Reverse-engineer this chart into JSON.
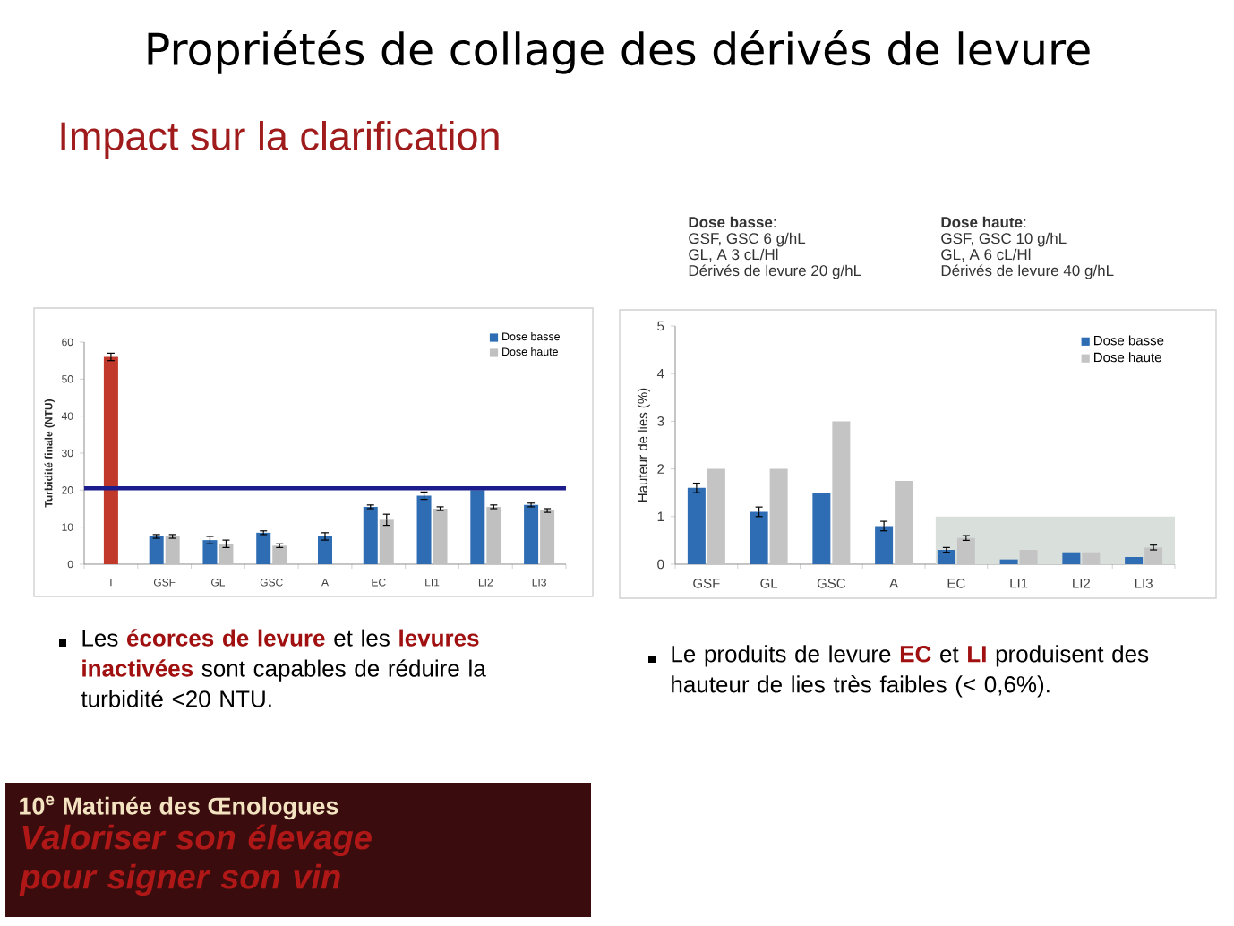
{
  "chart_data": [
    {
      "type": "bar",
      "title": "Propriétés de collage des dérivés de levure",
      "subtitle": "Impact sur la clarification",
      "ylabel": "Turbidité finale (NTU)",
      "categories": [
        "T",
        "GSF",
        "GL",
        "GSC",
        "A",
        "EC",
        "LI1",
        "LI2",
        "LI3"
      ],
      "series": [
        {
          "name": "Dose basse",
          "color": "#2e6db4",
          "colors": [
            "#c0392b",
            "#2e6db4",
            "#2e6db4",
            "#2e6db4",
            "#2e6db4",
            "#2e6db4",
            "#2e6db4",
            "#2e6db4",
            "#2e6db4"
          ],
          "values": [
            56,
            7.5,
            6.5,
            8.5,
            7.5,
            15.5,
            18.5,
            20,
            16
          ],
          "errors": [
            1,
            0.5,
            1,
            0.5,
            1,
            0.5,
            1,
            null,
            0.5
          ]
        },
        {
          "name": "Dose haute",
          "color": "#c0c0c0",
          "values": [
            null,
            7.5,
            5.5,
            5,
            null,
            12,
            15,
            15.5,
            14.5
          ],
          "errors": [
            null,
            0.5,
            1,
            0.5,
            null,
            1.5,
            0.5,
            0.5,
            0.5
          ]
        }
      ],
      "ylim": [
        0,
        60
      ],
      "yticks": [
        0,
        10,
        20,
        30,
        40,
        50,
        60
      ],
      "legend": "top right",
      "ref_lines": [
        {
          "axis": "y",
          "value": 20.5,
          "color": "#1c1c8c"
        }
      ],
      "annotations": [
        "Les **écorces de levure** et les **levures inactivées** sont capables de réduire la turbidité <20 NTU.",
        "10$^{e}$ Matinée des Œnologues",
        "Valoriser son élevage pour signer son vin"
      ]
    },
    {
      "type": "bar",
      "ylabel": "Hauteur de lies (%)",
      "categories": [
        "GSF",
        "GL",
        "GSC",
        "A",
        "EC",
        "LI1",
        "LI2",
        "LI3"
      ],
      "series": [
        {
          "name": "Dose basse",
          "color": "#2e6db4",
          "values": [
            1.6,
            1.1,
            1.5,
            0.8,
            0.3,
            0.1,
            0.25,
            0.15
          ],
          "errors": [
            0.1,
            0.1,
            null,
            0.1,
            0.05,
            null,
            null,
            null
          ]
        },
        {
          "name": "Dose haute",
          "color": "#c4c4c4",
          "values": [
            2,
            2,
            3,
            1.75,
            0.55,
            0.3,
            0.25,
            0.35
          ],
          "errors": [
            null,
            null,
            null,
            null,
            0.05,
            null,
            null,
            0.05
          ]
        }
      ],
      "ylim": [
        0,
        5
      ],
      "yticks": [
        0,
        1,
        2,
        3,
        4,
        5
      ],
      "legend": "top right",
      "bands": [
        {
          "axis": "x",
          "from": "EC",
          "to": "LI3",
          "color": "#d9e0dc"
        }
      ],
      "annotations": [
        "**Dose basse**:",
        "GSF, GSC 6 g/hL",
        "GL, A 3 cL/Hl",
        "Dérivés de levure 20 g/hL",
        "**Dose haute**:",
        "GSF, GSC 10 g/hL",
        "GL, A 6 cL/Hl",
        "Dérivés de levure 40 g/hL",
        "Le produits de levure **EC** et **LI** produisent des hauteur de lies très faibles (< 0,6%)."
      ]
    }
  ]
}
